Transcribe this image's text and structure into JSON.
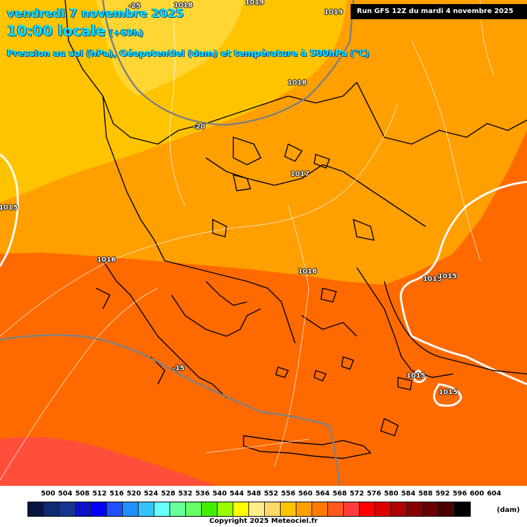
{
  "header": {
    "date": "vendredi 7 novembre 2025",
    "time": "10:00 locale",
    "offset": "(+69h)",
    "parameters": "Pression au sol (hPa), Géopotentiel (dam) et température à 500hPa (°C)",
    "run": "Run GFS 12Z du mardi 4 novembre 2025"
  },
  "map_labels": {
    "pressure": [
      "1018",
      "1019",
      "1019",
      "1018",
      "1017",
      "1016",
      "1016",
      "1015",
      "1015",
      "1015",
      "1015",
      "1015"
    ],
    "temperature": [
      "-25",
      "-20",
      "-15"
    ]
  },
  "legend": {
    "values": [
      "500",
      "504",
      "508",
      "512",
      "516",
      "520",
      "524",
      "528",
      "532",
      "536",
      "540",
      "544",
      "548",
      "552",
      "556",
      "560",
      "564",
      "568",
      "572",
      "576",
      "580",
      "584",
      "588",
      "592",
      "596",
      "600",
      "604"
    ],
    "colors": [
      "#0a1440",
      "#0f2a6e",
      "#14348f",
      "#1010c8",
      "#0000ff",
      "#1e50ff",
      "#1e90ff",
      "#32c4ff",
      "#66ffff",
      "#66ff99",
      "#66ff66",
      "#44ee00",
      "#99ff00",
      "#ffff00",
      "#ffee88",
      "#ffd966",
      "#ffc300",
      "#ff9f00",
      "#ff7a00",
      "#ff5a1e",
      "#ff3c3c",
      "#ff0000",
      "#dd0000",
      "#b00000",
      "#8a0000",
      "#6a0000",
      "#4a0000",
      "#000000"
    ],
    "unit": "(dam)"
  },
  "copyright": "Copyright 2025 Meteociel.fr"
}
